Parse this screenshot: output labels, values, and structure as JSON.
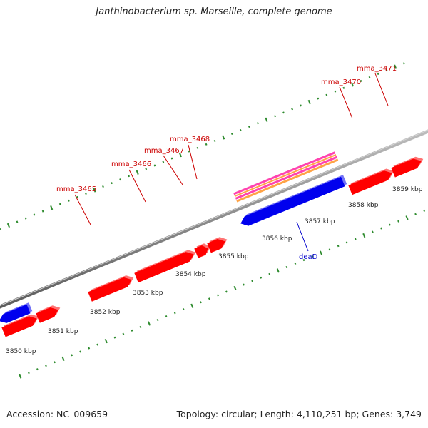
{
  "title": "Janthinobacterium sp. Marseille, complete genome",
  "footer": {
    "accession": "Accession: NC_009659",
    "summary": "Topology: circular; Length: 4,110,251 bp; Genes: 3,749"
  },
  "colors": {
    "backbone": "#8c8c8c",
    "tick": "#2e8b2e",
    "forward_gene": "#ff0000",
    "reverse_gene": "#0000ee",
    "label_forward": "#cc0000",
    "label_reverse": "#0000cc",
    "feature_orange": "#ff9a33",
    "feature_pink": "#ff2fa8"
  },
  "scale_labels": [
    "3850 kbp",
    "3851 kbp",
    "3852 kbp",
    "3853 kbp",
    "3854 kbp",
    "3855 kbp",
    "3856 kbp",
    "3857 kbp",
    "3858 kbp",
    "3859 kbp"
  ],
  "gene_labels": {
    "mma_3465": "mma_3465",
    "mma_3466": "mma_3466",
    "mma_3467": "mma_3467",
    "mma_3468": "mma_3468",
    "mma_3470": "mma_3470",
    "mma_3471": "mma_3471",
    "deaD": "deaD"
  }
}
